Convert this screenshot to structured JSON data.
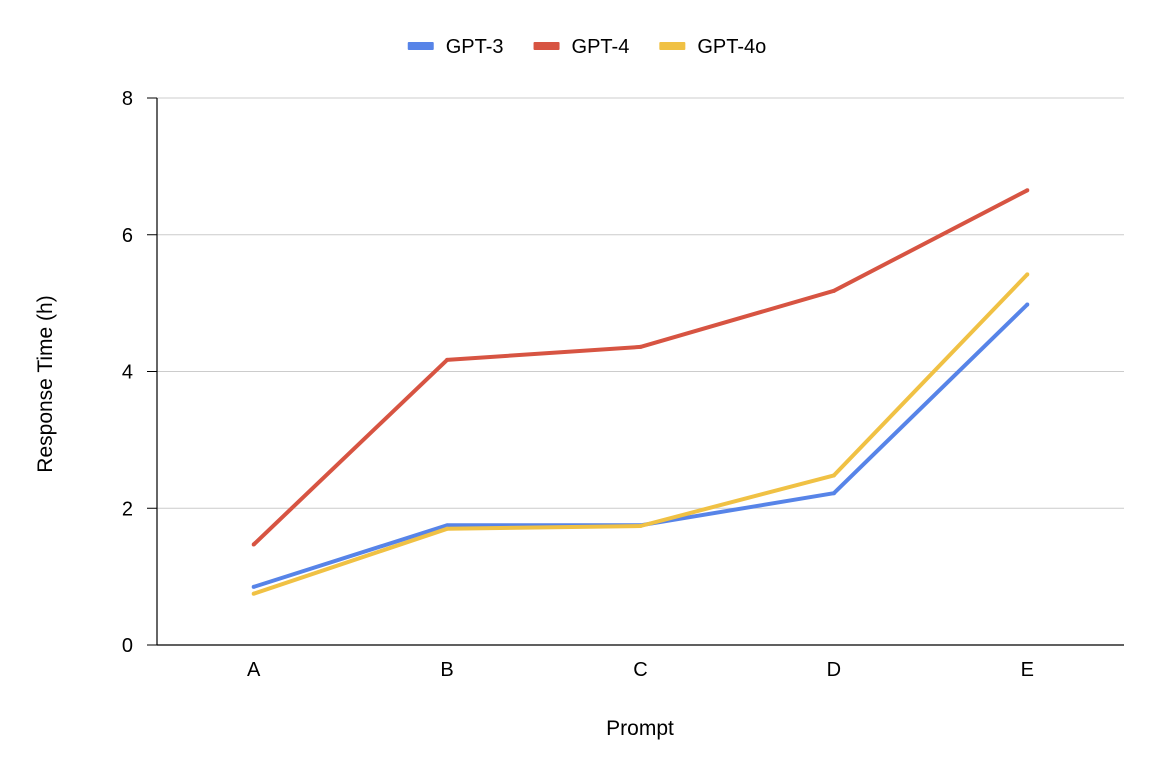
{
  "chart_data": {
    "type": "line",
    "title": "",
    "xlabel": "Prompt",
    "ylabel": "Response Time (h)",
    "categories": [
      "A",
      "B",
      "C",
      "D",
      "E"
    ],
    "ylim": [
      0,
      8
    ],
    "yticks": [
      0,
      2,
      4,
      6,
      8
    ],
    "grid": true,
    "legend_position": "top",
    "series": [
      {
        "name": "GPT-3",
        "color": "#5784e8",
        "values": [
          0.85,
          1.75,
          1.75,
          2.22,
          4.98
        ]
      },
      {
        "name": "GPT-4",
        "color": "#d75442",
        "values": [
          1.47,
          4.17,
          4.36,
          5.18,
          6.65
        ]
      },
      {
        "name": "GPT-4o",
        "color": "#f0c144",
        "values": [
          0.75,
          1.7,
          1.74,
          2.48,
          5.42
        ]
      }
    ]
  }
}
